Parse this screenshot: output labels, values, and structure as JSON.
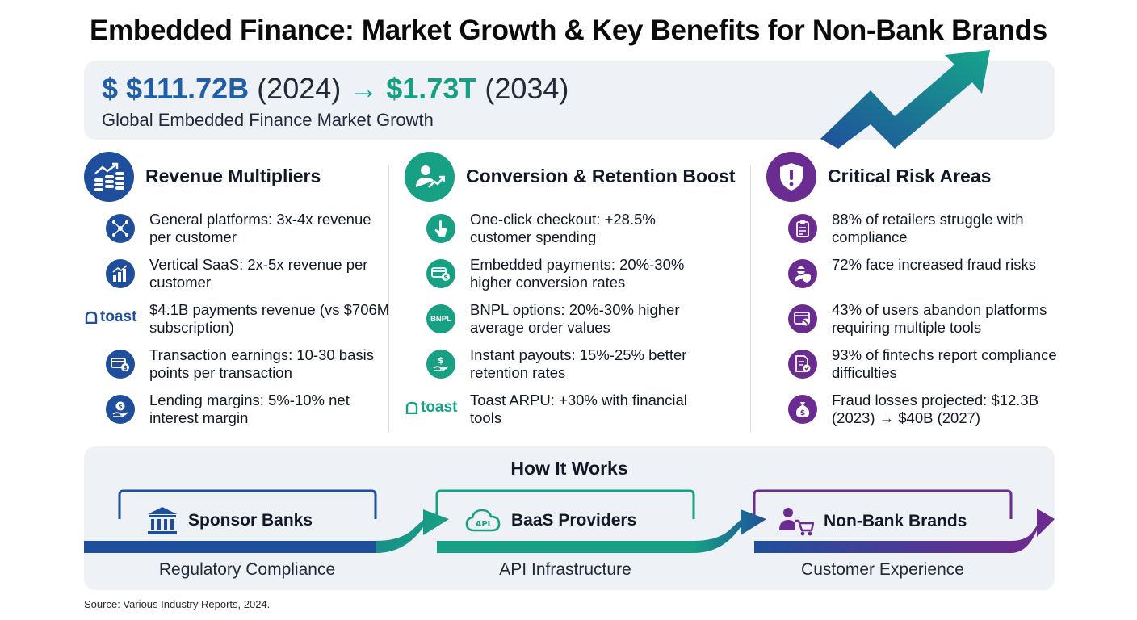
{
  "title": "Embedded Finance: Market Growth & Key Benefits for Non-Bank Brands",
  "hero": {
    "prefix": "$ $111.72B",
    "year1": " (2024) ",
    "arrow": "→",
    "target": " $1.73T",
    "year2": " (2034)",
    "subtitle": "Global Embedded Finance Market Growth"
  },
  "columns": [
    {
      "heading": "Revenue Multipliers",
      "color": "#1f4f9c",
      "items": [
        {
          "text": "General platforms: 3x-4x revenue per customer",
          "icon": "network-icon"
        },
        {
          "text": "Vertical SaaS: 2x-5x revenue per customer",
          "icon": "growth-chart-icon"
        },
        {
          "text": "$4.1B payments revenue (vs $706M subscription)",
          "icon": "toast-logo",
          "logo": "toast"
        },
        {
          "text": "Transaction earnings: 10-30 basis points per transaction",
          "icon": "card-coin-icon"
        },
        {
          "text": "Lending margins: 5%-10% net interest margin",
          "icon": "hand-coin-icon"
        }
      ]
    },
    {
      "heading": "Conversion & Retention Boost",
      "color": "#17a083",
      "items": [
        {
          "text": "One-click checkout: +28.5% customer spending",
          "icon": "tap-icon"
        },
        {
          "text": "Embedded payments: 20%-30% higher conversion rates",
          "icon": "card-coin-icon"
        },
        {
          "text": "BNPL options: 20%-30% higher average order values",
          "icon": "bnpl-badge",
          "badge": "BNPL"
        },
        {
          "text": "Instant payouts: 15%-25% better retention rates",
          "icon": "hand-dollar-icon"
        },
        {
          "text": "Toast ARPU: +30% with financial tools",
          "icon": "toast-logo",
          "logo": "toast"
        }
      ]
    },
    {
      "heading": "Critical Risk Areas",
      "color": "#6a2c91",
      "items": [
        {
          "text": "88% of retailers struggle with compliance",
          "icon": "clipboard-icon"
        },
        {
          "text": "72% face increased fraud risks",
          "icon": "fraud-user-icon"
        },
        {
          "text": "43% of users abandon platforms requiring multiple tools",
          "icon": "browser-icon"
        },
        {
          "text": "93% of fintechs report compliance difficulties",
          "icon": "document-check-icon"
        },
        {
          "text": "Fraud losses projected: $12.3B (2023) → $40B (2027)",
          "icon": "money-bag-icon"
        }
      ]
    }
  ],
  "how_it_works": {
    "title": "How It Works",
    "stages": [
      {
        "label": "Sponsor Banks",
        "sub": "Regulatory Compliance",
        "icon": "bank-icon",
        "color": "#1f4f9c"
      },
      {
        "label": "BaaS Providers",
        "sub": "API Infrastructure",
        "icon": "api-cloud-icon",
        "color": "#17a083",
        "icon_text": "API"
      },
      {
        "label": "Non-Bank Brands",
        "sub": "Customer Experience",
        "icon": "shopper-cart-icon",
        "color": "#6a2c91"
      }
    ]
  },
  "source": "Source: Various Industry Reports, 2024."
}
